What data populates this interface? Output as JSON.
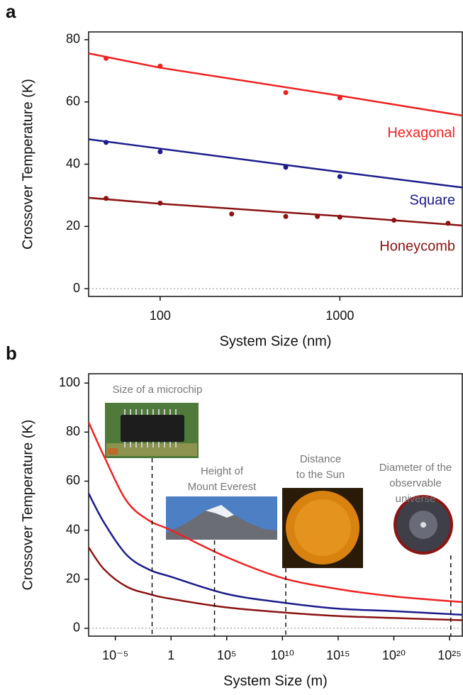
{
  "chart_data": [
    {
      "panel": "a",
      "type": "scatter",
      "xscale": "log",
      "xlabel": "System Size (nm)",
      "ylabel": "Crossover Temperature (K)",
      "xlim": [
        40,
        4800
      ],
      "ylim": [
        -2.5,
        82.5
      ],
      "xticks": [
        100,
        1000
      ],
      "yticks": [
        0,
        20,
        40,
        60,
        80
      ],
      "reference_line": 0,
      "series": [
        {
          "name": "Hexagonal",
          "color": "#ee2222",
          "x": [
            50,
            100,
            500,
            1000
          ],
          "values": [
            74,
            71.5,
            63,
            61.3
          ],
          "fit_x": [
            40,
            100,
            1000,
            4800
          ],
          "fit_values": [
            75.6,
            71,
            62,
            55.6
          ]
        },
        {
          "name": "Square",
          "color": "#1c1c8c",
          "x": [
            50,
            100,
            500,
            1000
          ],
          "values": [
            47,
            44,
            39,
            36
          ],
          "fit_x": [
            40,
            100,
            1000,
            4800
          ],
          "fit_values": [
            48,
            45,
            37.5,
            32.5
          ]
        },
        {
          "name": "Honeycomb",
          "color": "#8b1212",
          "x": [
            50,
            100,
            250,
            500,
            750,
            1000,
            2000,
            4000
          ],
          "values": [
            29,
            27.5,
            24,
            23.2,
            23.2,
            23,
            22,
            21
          ],
          "fit_x": [
            40,
            100,
            1000,
            4800
          ],
          "fit_values": [
            29.2,
            27.3,
            23.3,
            20.3
          ]
        }
      ]
    },
    {
      "panel": "b",
      "type": "line",
      "xscale": "log",
      "xlabel": "System Size (m)",
      "ylabel": "Crossover Temperature (K)",
      "xlim": [
        4e-08,
        1.4e+26
      ],
      "ylim": [
        -3.2,
        103.8
      ],
      "xticks": [
        {
          "value": 1e-05,
          "label": "10⁻⁵"
        },
        1,
        {
          "value": 100000.0,
          "label": "10⁵"
        },
        {
          "value": 10000000000.0,
          "label": "10¹⁰"
        },
        {
          "value": 1000000000000000.0,
          "label": "10¹⁵"
        },
        {
          "value": 1e+20,
          "label": "10²⁰"
        },
        {
          "value": 1e+25,
          "label": "10²⁵"
        }
      ],
      "yticks": [
        0,
        20,
        40,
        60,
        80,
        100
      ],
      "reference_line": 0,
      "x": [
        4e-08,
        1e-06,
        0.0001,
        0.01,
        1,
        100000.0,
        10000000000.0,
        1000000000000000.0,
        1e+20,
        1.4e+26
      ],
      "series": [
        {
          "color": "#ee2222",
          "values": [
            84,
            70,
            52,
            44,
            40,
            29,
            20.5,
            16,
            13,
            10.7
          ]
        },
        {
          "color": "#1c1c8c",
          "values": [
            55,
            43,
            30,
            24,
            21,
            14,
            10.5,
            8,
            7,
            5.5
          ]
        },
        {
          "color": "#8b1212",
          "values": [
            33,
            24,
            17,
            14,
            12,
            8.5,
            6.5,
            5,
            4.2,
            3.3
          ]
        }
      ],
      "annotations": [
        {
          "lines": [
            "Size of a microchip"
          ],
          "x": 0.02
        },
        {
          "lines": [
            "Height of",
            "Mount Everest"
          ],
          "x": 8000
        },
        {
          "lines": [
            "Distance",
            "to the Sun"
          ],
          "x": 20000000000.0
        },
        {
          "lines": [
            "Diameter of the",
            "observable",
            "universe"
          ],
          "x": 1.3e+25
        }
      ]
    }
  ]
}
